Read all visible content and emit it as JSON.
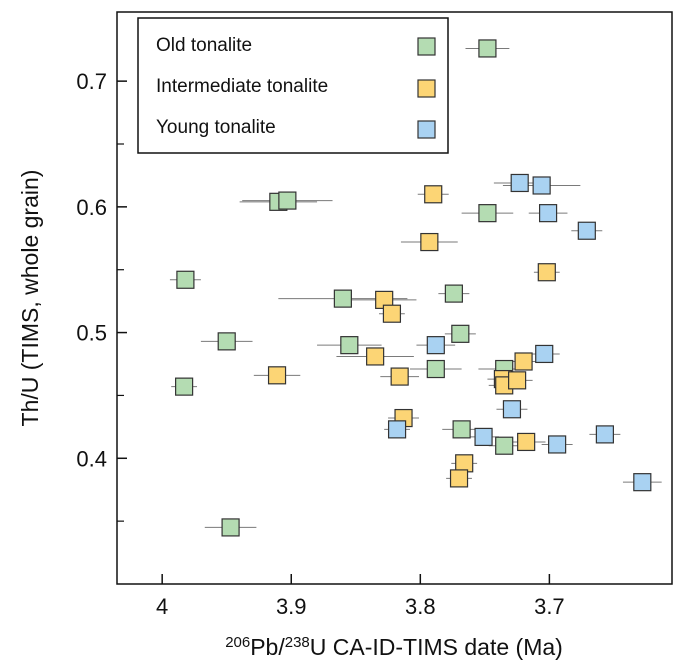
{
  "chart_data": {
    "type": "scatter",
    "xlabel_parts": [
      {
        "text": "206",
        "sup": true
      },
      {
        "text": "Pb/",
        "sup": false
      },
      {
        "text": "238",
        "sup": true
      },
      {
        "text": "U CA-ID-TIMS date (Ma)",
        "sup": false
      }
    ],
    "ylabel": "Th/U (TIMS, whole grain)",
    "x_axis": {
      "reversed": true,
      "range": [
        4.035,
        3.605
      ],
      "ticks": [
        4.0,
        3.9,
        3.8,
        3.7
      ],
      "tick_labels": [
        "4",
        "3.9",
        "3.8",
        "3.7"
      ]
    },
    "y_axis": {
      "range": [
        0.3,
        0.755
      ],
      "ticks": [
        0.4,
        0.5,
        0.6,
        0.7
      ],
      "tick_labels": [
        "0.4",
        "0.5",
        "0.6",
        "0.7"
      ],
      "minor_ticks": [
        0.35,
        0.45,
        0.55,
        0.65
      ]
    },
    "grid": false,
    "legend_position": "top-left",
    "series": [
      {
        "name": "Old tonalite",
        "color": "#b4dcb2",
        "points": [
          {
            "x": 3.748,
            "y": 0.726,
            "xerr": 0.017
          },
          {
            "x": 3.91,
            "y": 0.604,
            "xerr": 0.03
          },
          {
            "x": 3.903,
            "y": 0.605,
            "xerr": 0.035
          },
          {
            "x": 3.748,
            "y": 0.595,
            "xerr": 0.02
          },
          {
            "x": 3.982,
            "y": 0.542,
            "xerr": 0.012
          },
          {
            "x": 3.86,
            "y": 0.527,
            "xerr": 0.05
          },
          {
            "x": 3.774,
            "y": 0.531,
            "xerr": 0.012
          },
          {
            "x": 3.769,
            "y": 0.499,
            "xerr": 0.012
          },
          {
            "x": 3.95,
            "y": 0.493,
            "xerr": 0.02
          },
          {
            "x": 3.855,
            "y": 0.49,
            "xerr": 0.025
          },
          {
            "x": 3.788,
            "y": 0.471,
            "xerr": 0.02
          },
          {
            "x": 3.735,
            "y": 0.471,
            "xerr": 0.02
          },
          {
            "x": 3.983,
            "y": 0.457,
            "xerr": 0.01
          },
          {
            "x": 3.768,
            "y": 0.423,
            "xerr": 0.015
          },
          {
            "x": 3.735,
            "y": 0.41,
            "xerr": 0.012
          },
          {
            "x": 3.947,
            "y": 0.345,
            "xerr": 0.02
          }
        ]
      },
      {
        "name": "Intermediate tonalite",
        "color": "#fcd575",
        "points": [
          {
            "x": 3.79,
            "y": 0.61,
            "xerr": 0.012
          },
          {
            "x": 3.793,
            "y": 0.572,
            "xerr": 0.022
          },
          {
            "x": 3.702,
            "y": 0.548,
            "xerr": 0.01
          },
          {
            "x": 3.828,
            "y": 0.526,
            "xerr": 0.025
          },
          {
            "x": 3.822,
            "y": 0.515,
            "xerr": 0.01
          },
          {
            "x": 3.835,
            "y": 0.481,
            "xerr": 0.03
          },
          {
            "x": 3.911,
            "y": 0.466,
            "xerr": 0.018
          },
          {
            "x": 3.816,
            "y": 0.465,
            "xerr": 0.015
          },
          {
            "x": 3.72,
            "y": 0.477,
            "xerr": 0.01
          },
          {
            "x": 3.736,
            "y": 0.463,
            "xerr": 0.012
          },
          {
            "x": 3.735,
            "y": 0.458,
            "xerr": 0.012
          },
          {
            "x": 3.725,
            "y": 0.462,
            "xerr": 0.012
          },
          {
            "x": 3.813,
            "y": 0.432,
            "xerr": 0.012
          },
          {
            "x": 3.718,
            "y": 0.413,
            "xerr": 0.015
          },
          {
            "x": 3.766,
            "y": 0.396,
            "xerr": 0.01
          },
          {
            "x": 3.77,
            "y": 0.384,
            "xerr": 0.01
          }
        ]
      },
      {
        "name": "Young tonalite",
        "color": "#a9d2f2",
        "points": [
          {
            "x": 3.723,
            "y": 0.619,
            "xerr": 0.02
          },
          {
            "x": 3.706,
            "y": 0.617,
            "xerr": 0.03
          },
          {
            "x": 3.701,
            "y": 0.595,
            "xerr": 0.015
          },
          {
            "x": 3.671,
            "y": 0.581,
            "xerr": 0.012
          },
          {
            "x": 3.788,
            "y": 0.49,
            "xerr": 0.015
          },
          {
            "x": 3.704,
            "y": 0.483,
            "xerr": 0.012
          },
          {
            "x": 3.729,
            "y": 0.439,
            "xerr": 0.012
          },
          {
            "x": 3.818,
            "y": 0.423,
            "xerr": 0.01
          },
          {
            "x": 3.751,
            "y": 0.417,
            "xerr": 0.012
          },
          {
            "x": 3.694,
            "y": 0.411,
            "xerr": 0.012
          },
          {
            "x": 3.657,
            "y": 0.419,
            "xerr": 0.012
          },
          {
            "x": 3.628,
            "y": 0.381,
            "xerr": 0.015
          }
        ]
      }
    ]
  }
}
